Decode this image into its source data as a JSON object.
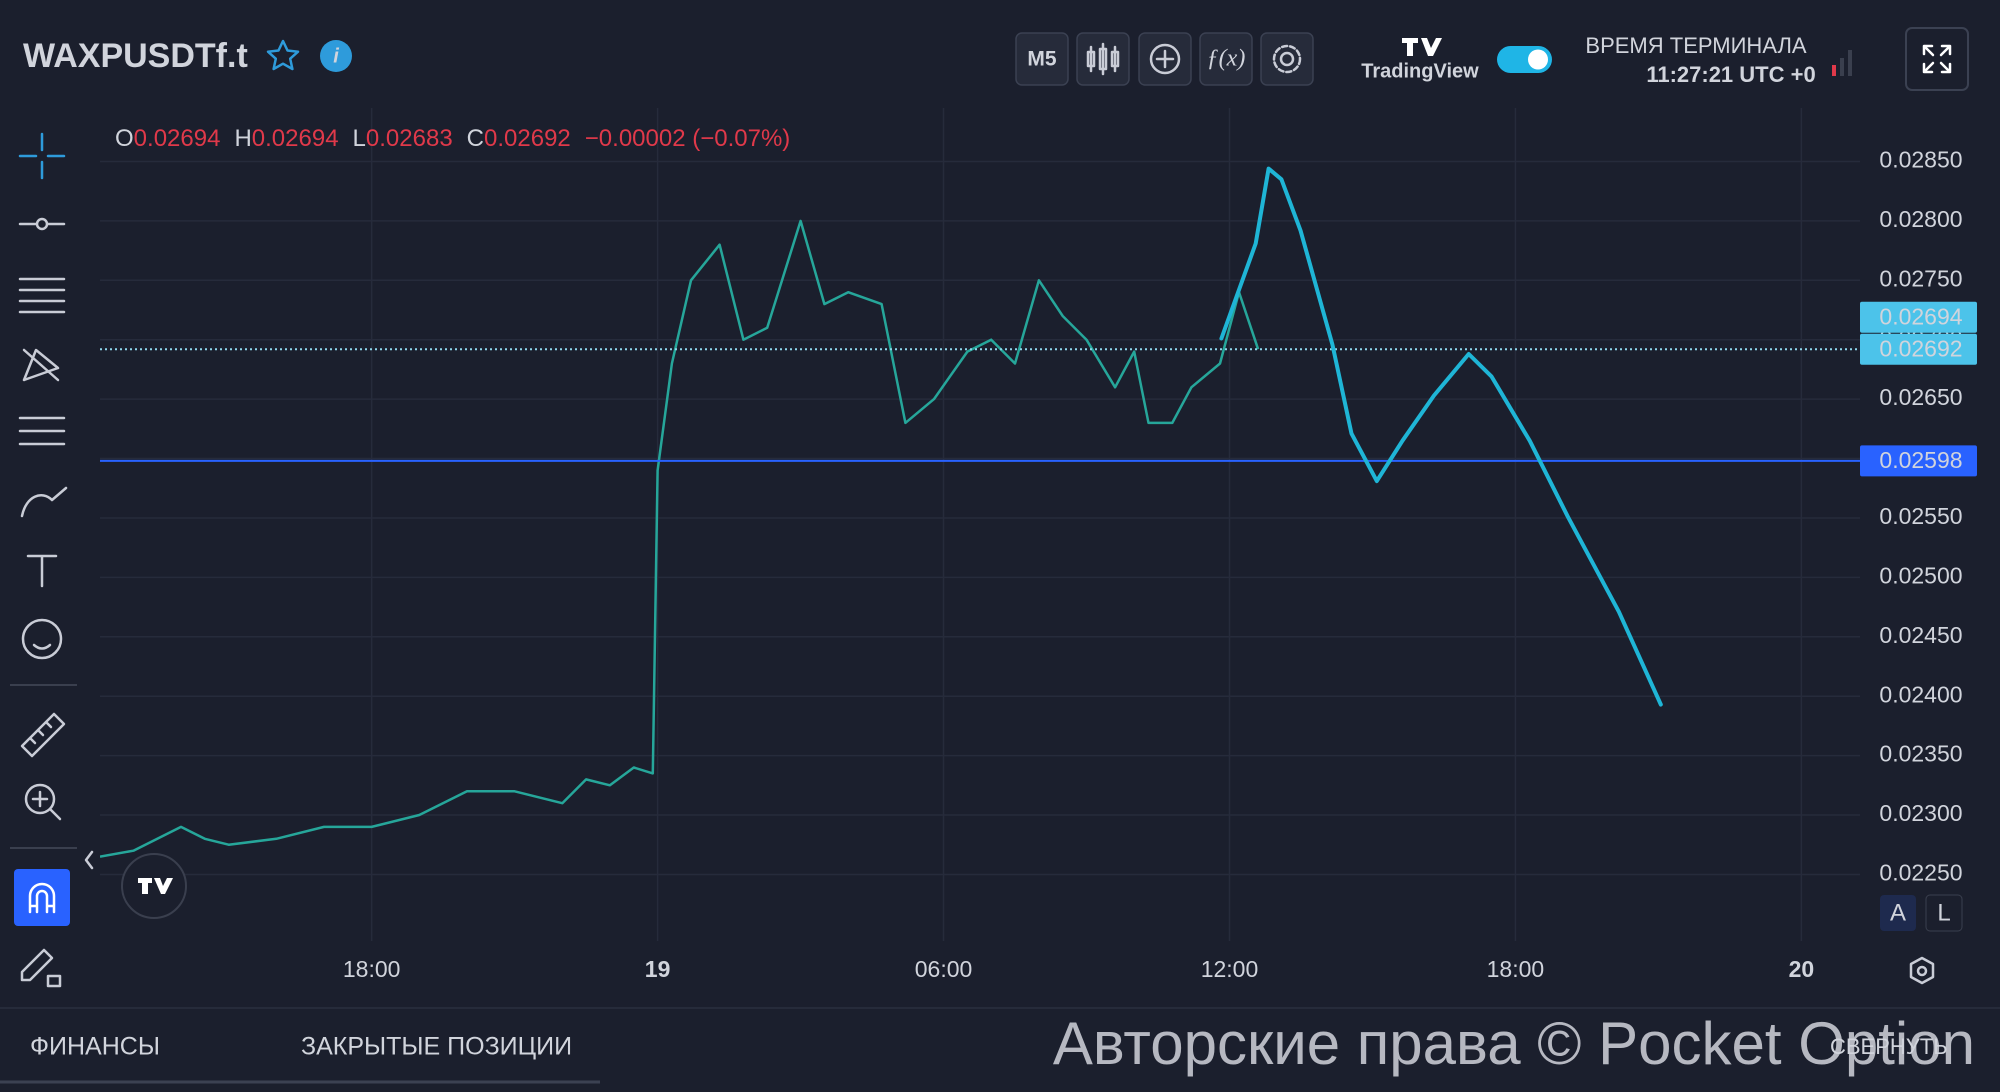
{
  "header": {
    "symbol": "WAXPUSDTf.t",
    "timeframe": "M5",
    "brand": "TradingView",
    "terminal_time_label": "ВРЕМЯ ТЕРМИНАЛА",
    "terminal_time": "11:27:21 UTC +0"
  },
  "ohlc": [
    {
      "key": "O",
      "value": 0.02694
    },
    {
      "key": "H",
      "value": 0.02694
    },
    {
      "key": "L",
      "value": 0.02683
    },
    {
      "key": "C",
      "value": 0.02692
    }
  ],
  "change": "−0.00002 (−0.07%)",
  "chart_data": {
    "type": "line",
    "x": [
      12.3,
      13,
      14,
      14.5,
      15,
      16,
      17,
      18,
      19,
      20,
      21,
      22,
      22.5,
      23,
      23.5,
      23.9,
      24.0,
      24.3,
      24.7,
      25.3,
      25.8,
      26.3,
      27,
      27.5,
      28,
      28.7,
      29.2,
      29.8,
      30.5,
      31,
      31.5,
      32,
      32.5,
      33,
      33.6,
      34,
      34.3,
      34.8,
      35.2,
      35.8,
      36.2,
      36.6
    ],
    "values": [
      0.02265,
      0.0227,
      0.0229,
      0.0228,
      0.02275,
      0.0228,
      0.0229,
      0.0229,
      0.023,
      0.0232,
      0.0232,
      0.0231,
      0.0233,
      0.02325,
      0.0234,
      0.02335,
      0.0259,
      0.0268,
      0.0275,
      0.0278,
      0.027,
      0.0271,
      0.028,
      0.0273,
      0.0274,
      0.0273,
      0.0263,
      0.0265,
      0.0269,
      0.027,
      0.0268,
      0.0275,
      0.0272,
      0.027,
      0.0266,
      0.0269,
      0.0263,
      0.0263,
      0.0266,
      0.0268,
      0.0274,
      0.02692
    ],
    "color": "#26a69a",
    "xlim": [
      12.3,
      49.23
    ],
    "xticks": [
      {
        "value": 18,
        "label": "18:00"
      },
      {
        "value": 24,
        "label": "19"
      },
      {
        "value": 30,
        "label": "06:00"
      },
      {
        "value": 36,
        "label": "12:00"
      },
      {
        "value": 42,
        "label": "18:00"
      },
      {
        "value": 48,
        "label": "20"
      }
    ],
    "ylim": [
      0.02194,
      0.02895
    ],
    "yticks": [
      {
        "value": 0.0225,
        "label": "0.02250"
      },
      {
        "value": 0.023,
        "label": "0.02300"
      },
      {
        "value": 0.0235,
        "label": "0.02350"
      },
      {
        "value": 0.024,
        "label": "0.02400"
      },
      {
        "value": 0.0245,
        "label": "0.02450"
      },
      {
        "value": 0.025,
        "label": "0.02500"
      },
      {
        "value": 0.0255,
        "label": "0.02550"
      },
      {
        "value": 0.026,
        "label": "0.02600"
      },
      {
        "value": 0.0265,
        "label": "0.02650"
      },
      {
        "value": 0.027,
        "label": "0.02700"
      },
      {
        "value": 0.0275,
        "label": "0.02750"
      },
      {
        "value": 0.028,
        "label": "0.02800"
      },
      {
        "value": 0.0285,
        "label": "0.02850"
      }
    ],
    "grid": true,
    "price_tags": [
      {
        "value": 0.02694,
        "color": "#4cc3ea"
      },
      {
        "value": 0.02692,
        "color": "#4cc3ea",
        "line": "dotted"
      },
      {
        "value": 0.02598,
        "color": "#2962ff",
        "line": "solid"
      }
    ],
    "drawing": {
      "x": [
        35.83,
        36.55,
        36.82,
        37.09,
        37.49,
        38.16,
        38.56,
        39.09,
        39.63,
        40.29,
        41.02,
        41.5,
        42.3,
        43.1,
        44.17,
        45.05
      ],
      "values": [
        0.02701,
        0.02781,
        0.02844,
        0.02835,
        0.02792,
        0.02696,
        0.02621,
        0.02581,
        0.02615,
        0.02653,
        0.02688,
        0.02669,
        0.02615,
        0.02551,
        0.02471,
        0.02393
      ],
      "color": "#1fb5d6"
    }
  },
  "scale_buttons": [
    "A",
    "L"
  ],
  "tabs": [
    "ФИНАНСЫ",
    "ЗАКРЫТЫЕ ПОЗИЦИИ"
  ],
  "watermark": "Авторские права © Pocket Option",
  "collapse": "СВЕРНУТЬ"
}
